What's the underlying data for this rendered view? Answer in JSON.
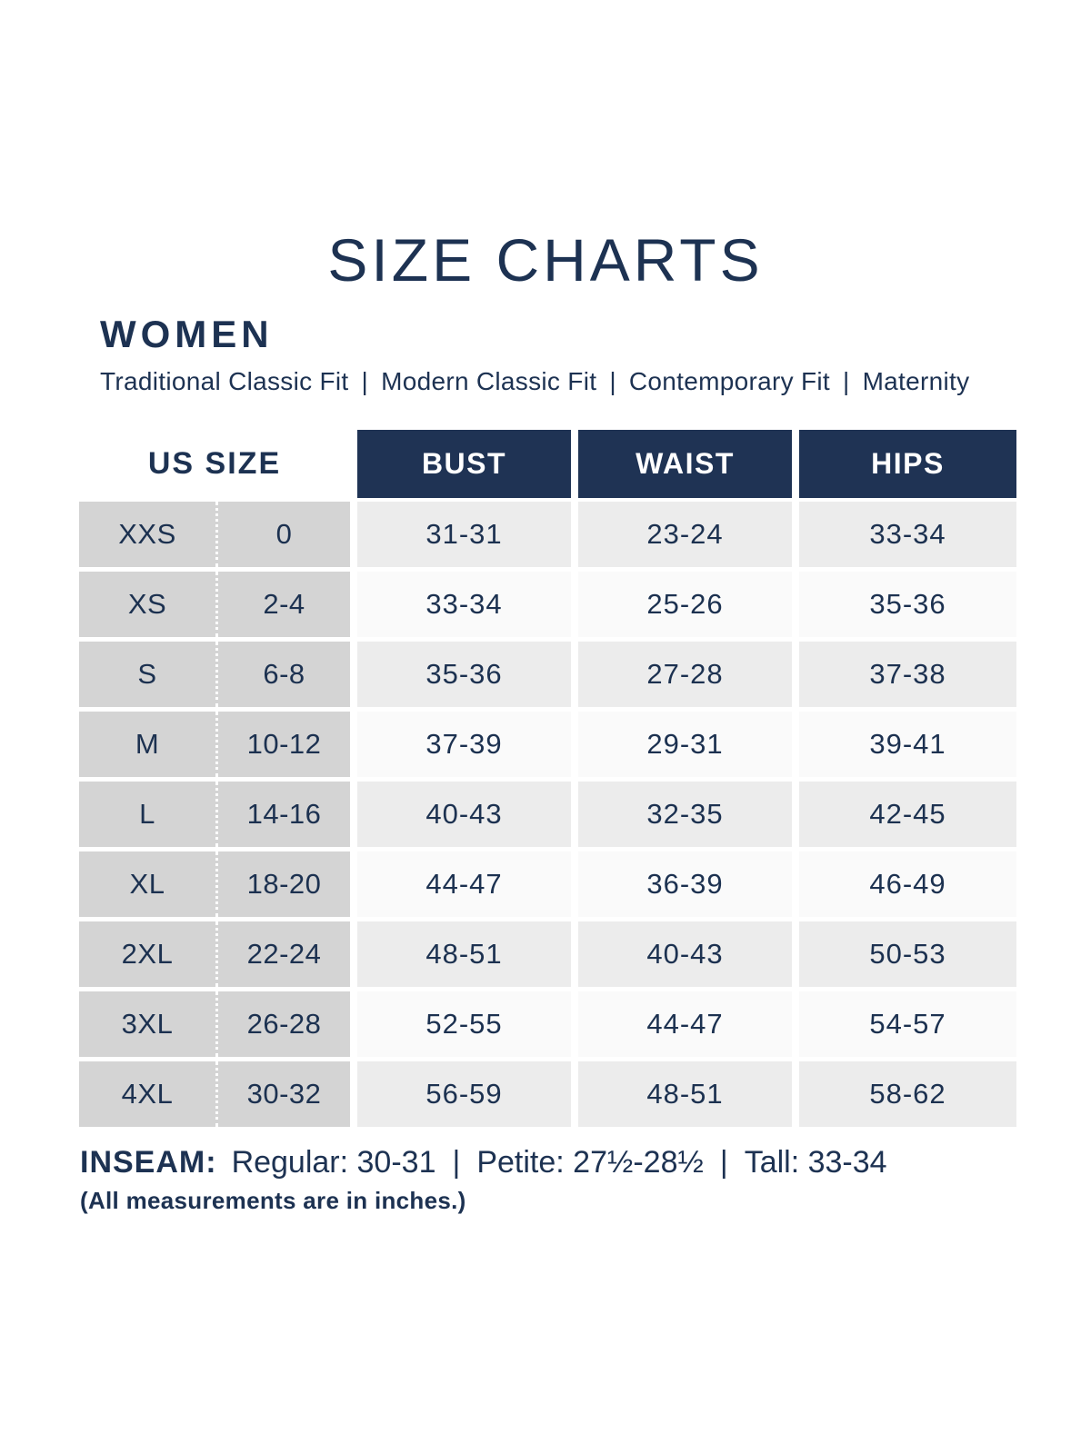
{
  "page": {
    "title": "SIZE CHARTS",
    "section_heading": "WOMEN",
    "fit_options": [
      "Traditional Classic Fit",
      "Modern Classic Fit",
      "Contemporary Fit",
      "Maternity"
    ],
    "separator": "|"
  },
  "table": {
    "us_size_header": "US SIZE",
    "measure_headers": [
      "BUST",
      "WAIST",
      "HIPS"
    ],
    "rows": [
      {
        "size": "XXS",
        "us": "0",
        "bust": "31-31",
        "waist": "23-24",
        "hips": "33-34"
      },
      {
        "size": "XS",
        "us": "2-4",
        "bust": "33-34",
        "waist": "25-26",
        "hips": "35-36"
      },
      {
        "size": "S",
        "us": "6-8",
        "bust": "35-36",
        "waist": "27-28",
        "hips": "37-38"
      },
      {
        "size": "M",
        "us": "10-12",
        "bust": "37-39",
        "waist": "29-31",
        "hips": "39-41"
      },
      {
        "size": "L",
        "us": "14-16",
        "bust": "40-43",
        "waist": "32-35",
        "hips": "42-45"
      },
      {
        "size": "XL",
        "us": "18-20",
        "bust": "44-47",
        "waist": "36-39",
        "hips": "46-49"
      },
      {
        "size": "2XL",
        "us": "22-24",
        "bust": "48-51",
        "waist": "40-43",
        "hips": "50-53"
      },
      {
        "size": "3XL",
        "us": "26-28",
        "bust": "52-55",
        "waist": "44-47",
        "hips": "54-57"
      },
      {
        "size": "4XL",
        "us": "30-32",
        "bust": "56-59",
        "waist": "48-51",
        "hips": "58-62"
      }
    ]
  },
  "footer": {
    "inseam_label": "INSEAM:",
    "inseam_segments": [
      "Regular: 30-31",
      "Petite: 27½-28½",
      "Tall: 33-34"
    ],
    "note": "(All measurements are in inches.)"
  },
  "colors": {
    "navy_fill": "#1f3354",
    "text_navy": "#1d3252",
    "us_size_column_gray": "#d4d4d4",
    "row_shaded": "#ececec",
    "row_plain": "#fafafa"
  }
}
